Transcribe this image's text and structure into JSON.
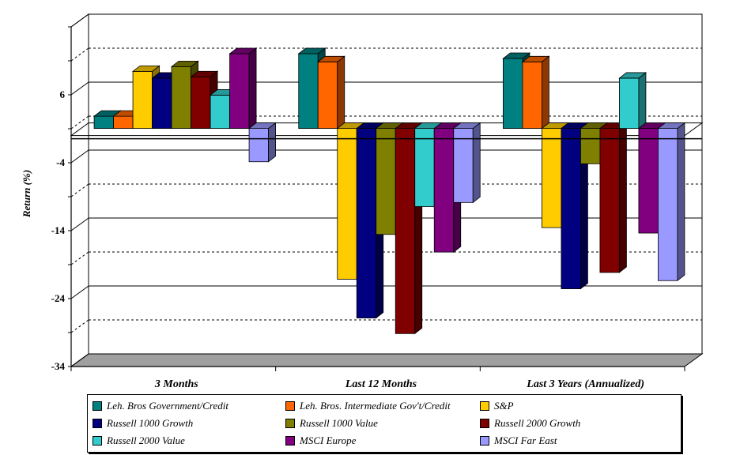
{
  "chart_data": {
    "type": "bar",
    "ylabel": "Return (%)",
    "xlabel": "",
    "ylim": [
      -34,
      16
    ],
    "yticks": [
      6,
      -4,
      -14,
      -24,
      -34
    ],
    "categories": [
      "3 Months",
      "Last 12 Months",
      "Last 3 Years (Annualized)"
    ],
    "grid": "solid major, dashed minor",
    "legend_position": "bottom",
    "series": [
      {
        "name": "Leh. Bros Government/Credit",
        "color": "#008080",
        "values": [
          1.8,
          11.0,
          10.3
        ]
      },
      {
        "name": "Leh. Bros. Intermediate Gov't/Credit",
        "color": "#FF6600",
        "values": [
          1.8,
          9.8,
          9.8
        ]
      },
      {
        "name": "S&P",
        "color": "#FFCC00",
        "values": [
          8.4,
          -22.2,
          -14.6
        ]
      },
      {
        "name": "Russell 1000 Growth",
        "color": "#000080",
        "values": [
          7.4,
          -27.9,
          -23.6
        ]
      },
      {
        "name": "Russell 1000 Value",
        "color": "#808000",
        "values": [
          9.1,
          -15.6,
          -5.2
        ]
      },
      {
        "name": "Russell 2000 Growth",
        "color": "#800000",
        "values": [
          7.6,
          -30.2,
          -21.2
        ]
      },
      {
        "name": "Russell 2000 Value",
        "color": "#33CCCC",
        "values": [
          4.9,
          -11.5,
          7.4
        ]
      },
      {
        "name": "MSCI Europe",
        "color": "#800080",
        "values": [
          11.0,
          -18.2,
          -15.4
        ]
      },
      {
        "name": "MSCI Far East",
        "color": "#9999FF",
        "values": [
          -4.9,
          -10.9,
          -22.4
        ]
      }
    ]
  }
}
